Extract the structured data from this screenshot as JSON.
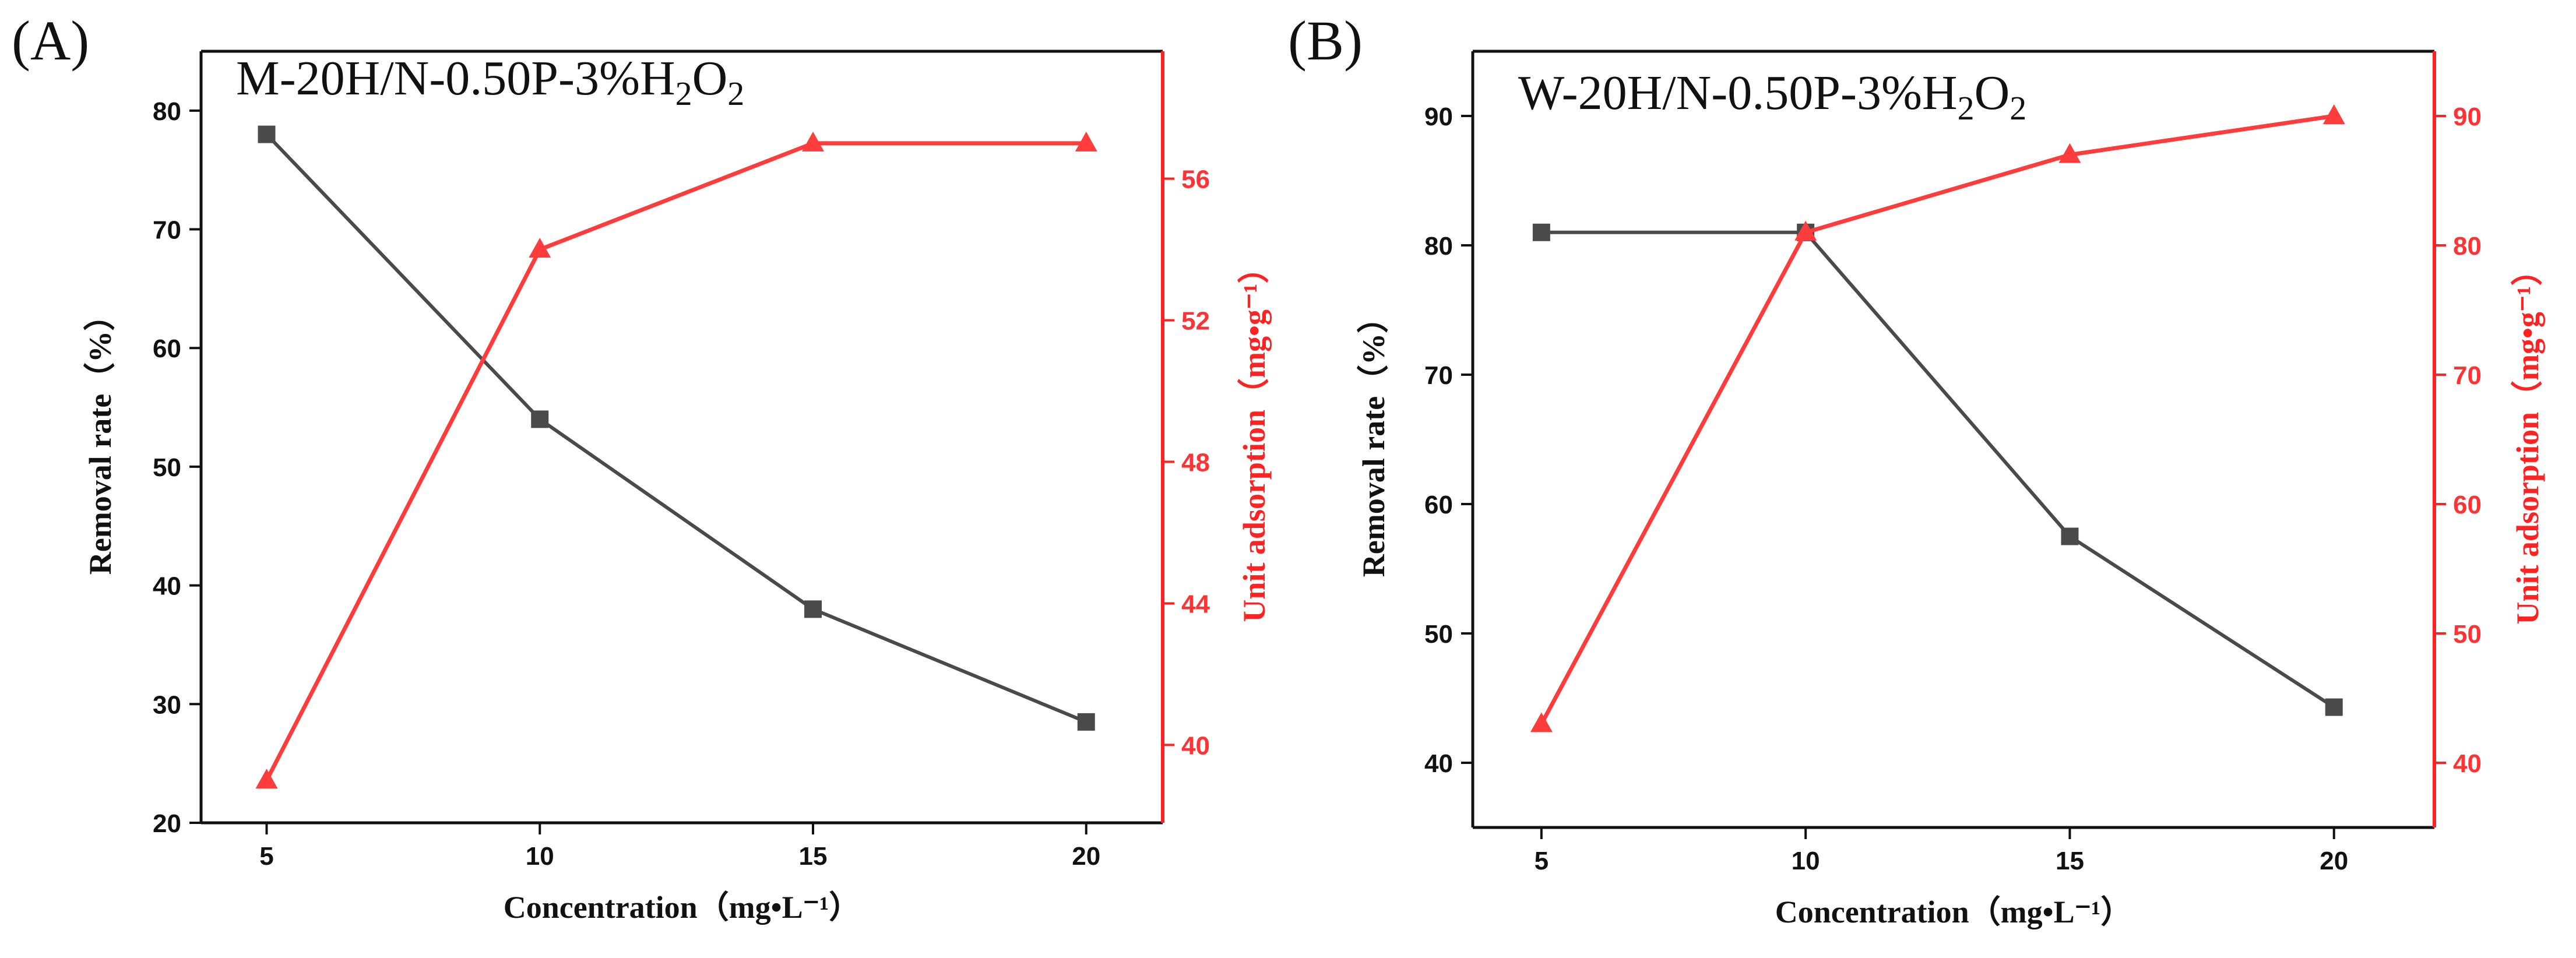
{
  "chart_data": [
    {
      "panel": "(A)",
      "type": "line",
      "title": "M-20H/N-0.50P-3%H2O2",
      "title_parts": {
        "main": "M-20H/N-0.50P-3%H",
        "sub1": "2",
        "mid": "O",
        "sub2": "2"
      },
      "xlabel": "Concentration（mg•L⁻¹）",
      "ylabel": "Removal rate（%）",
      "y2label": "Unit adsorption（mg•g⁻¹）",
      "x": [
        5,
        10,
        15,
        20
      ],
      "xlim": [
        3.8,
        21.4
      ],
      "xticks": [
        5,
        10,
        15,
        20
      ],
      "ylim": [
        20,
        85
      ],
      "yticks": [
        20,
        30,
        40,
        50,
        60,
        70,
        80
      ],
      "y2lim": [
        37.8,
        59.6
      ],
      "y2ticks": [
        40,
        44,
        48,
        52,
        56
      ],
      "series": [
        {
          "name": "Removal rate",
          "axis": "left",
          "marker": "square",
          "color": "#4a4a4a",
          "values": [
            78,
            54,
            38,
            28.5
          ]
        },
        {
          "name": "Unit adsorption",
          "axis": "right",
          "marker": "triangle",
          "color": "#ff3c3c",
          "values": [
            39,
            54,
            57,
            57
          ]
        }
      ]
    },
    {
      "panel": "(B)",
      "type": "line",
      "title": "W-20H/N-0.50P-3%H2O2",
      "title_parts": {
        "main": "W-20H/N-0.50P-3%H",
        "sub1": "2",
        "mid": "O",
        "sub2": "2"
      },
      "xlabel": "Concentration（mg•L⁻¹）",
      "ylabel": "Removal rate（%）",
      "y2label": "Unit adsorption（mg•g⁻¹）",
      "x": [
        5,
        10,
        15,
        20
      ],
      "xlim": [
        3.7,
        21.9
      ],
      "xticks": [
        5,
        10,
        15,
        20
      ],
      "ylim": [
        35,
        95
      ],
      "yticks": [
        40,
        50,
        60,
        70,
        80,
        90
      ],
      "y2lim": [
        35,
        95
      ],
      "y2ticks": [
        40,
        50,
        60,
        70,
        80,
        90
      ],
      "series": [
        {
          "name": "Removal rate",
          "axis": "left",
          "marker": "square",
          "color": "#4a4a4a",
          "values": [
            81,
            81,
            57.5,
            44.3
          ]
        },
        {
          "name": "Unit adsorption",
          "axis": "right",
          "marker": "triangle",
          "color": "#ff3c3c",
          "values": [
            43,
            81,
            87,
            90
          ]
        }
      ]
    }
  ],
  "colors": {
    "left_axis": "#111111",
    "right_axis": "#ff2222"
  }
}
